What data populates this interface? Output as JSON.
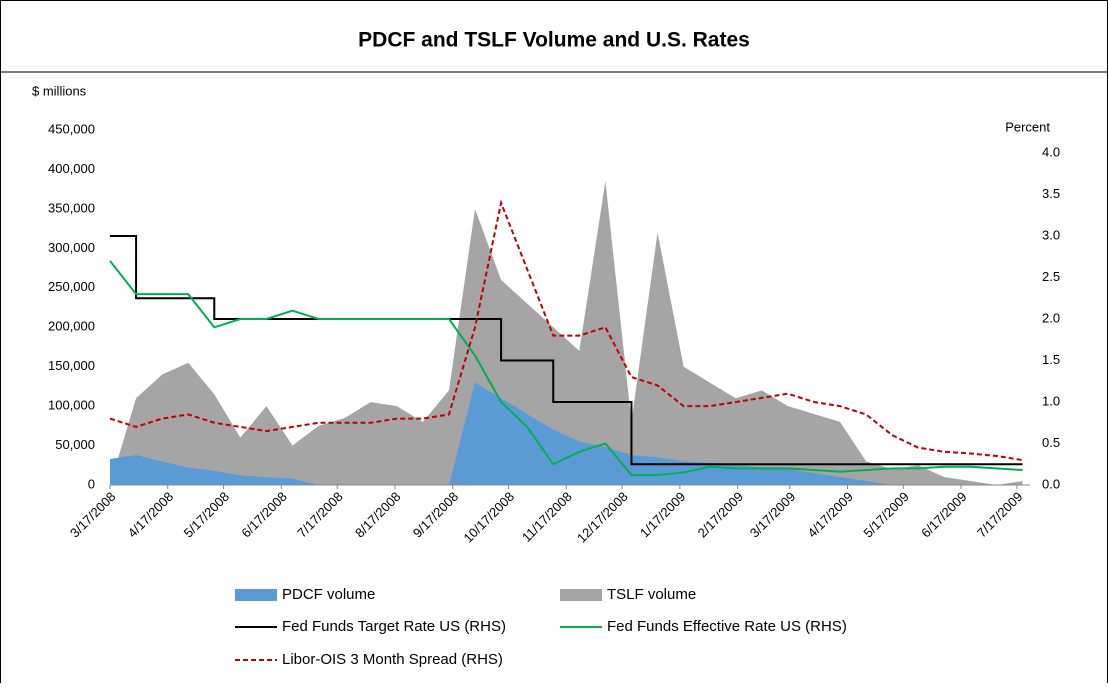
{
  "chart_data": {
    "type": "line",
    "title": "PDCF and TSLF Volume and U.S. Rates",
    "y_label": "$ millions",
    "y2_label": "Percent",
    "x": [
      "3/17/2008",
      "3/31/2008",
      "4/14/2008",
      "4/28/2008",
      "5/12/2008",
      "5/26/2008",
      "6/9/2008",
      "6/23/2008",
      "7/7/2008",
      "7/21/2008",
      "8/4/2008",
      "8/18/2008",
      "9/1/2008",
      "9/15/2008",
      "9/29/2008",
      "10/13/2008",
      "10/27/2008",
      "11/10/2008",
      "11/24/2008",
      "12/8/2008",
      "12/22/2008",
      "1/5/2009",
      "1/19/2009",
      "2/2/2009",
      "2/16/2009",
      "3/2/2009",
      "3/16/2009",
      "3/30/2009",
      "4/13/2009",
      "4/27/2009",
      "5/11/2009",
      "5/25/2009",
      "6/8/2009",
      "6/22/2009",
      "7/6/2009",
      "7/20/2009"
    ],
    "xlim": [
      "3/17/2008",
      "7/24/2009"
    ],
    "xticks": [
      "3/17/2008",
      "4/17/2008",
      "5/17/2008",
      "6/17/2008",
      "7/17/2008",
      "8/17/2008",
      "9/17/2008",
      "10/17/2008",
      "11/17/2008",
      "12/17/2008",
      "1/17/2009",
      "2/17/2009",
      "3/17/2009",
      "4/17/2009",
      "5/17/2009",
      "6/17/2009",
      "7/17/2009"
    ],
    "ylim": [
      0,
      450000
    ],
    "yticks": [
      0,
      {
        "value": 50000,
        "label": "50,000"
      },
      {
        "value": 100000,
        "label": "100,000"
      },
      {
        "value": 150000,
        "label": "150,000"
      },
      {
        "value": 200000,
        "label": "200,000"
      },
      {
        "value": 250000,
        "label": "250,000"
      },
      {
        "value": 300000,
        "label": "300,000"
      },
      {
        "value": 350000,
        "label": "350,000"
      },
      {
        "value": 400000,
        "label": "400,000"
      },
      {
        "value": 450000,
        "label": "450,000"
      }
    ],
    "y2lim": [
      0,
      4
    ],
    "y2ticks": [
      {
        "value": 0,
        "label": "0.0"
      },
      0.5,
      {
        "value": 1,
        "label": "1.0"
      },
      1.5,
      {
        "value": 2,
        "label": "2.0"
      },
      2.5,
      {
        "value": 3,
        "label": "3.0"
      },
      3.5,
      {
        "value": 4,
        "label": "4.0"
      }
    ],
    "grid": false,
    "series": [
      {
        "name": "TSLF volume",
        "kind": "area",
        "color": "#a5a5a5",
        "values": [
          0,
          110000,
          140000,
          155000,
          115000,
          60000,
          100000,
          50000,
          75000,
          85000,
          105000,
          100000,
          80000,
          120000,
          350000,
          260000,
          230000,
          200000,
          170000,
          385000,
          80000,
          320000,
          150000,
          130000,
          110000,
          120000,
          100000,
          90000,
          80000,
          30000,
          20000,
          25000,
          10000,
          5000,
          0,
          5000
        ]
      },
      {
        "name": "PDCF volume",
        "kind": "area",
        "color": "#5b9bd5",
        "values": [
          33000,
          38000,
          30000,
          22000,
          18000,
          12000,
          10000,
          8000,
          0,
          0,
          0,
          0,
          0,
          0,
          130000,
          110000,
          90000,
          70000,
          55000,
          48000,
          38000,
          35000,
          30000,
          28000,
          25000,
          22000,
          20000,
          15000,
          10000,
          5000,
          0,
          0,
          0,
          0,
          0,
          0
        ]
      },
      {
        "name": "Fed Funds Target Rate US (RHS)",
        "kind": "line",
        "axis": "y2",
        "drawstyle": "steps-post",
        "color": "#000000",
        "values": [
          3.0,
          2.25,
          2.25,
          2.25,
          2.0,
          2.0,
          2.0,
          2.0,
          2.0,
          2.0,
          2.0,
          2.0,
          2.0,
          2.0,
          2.0,
          1.5,
          1.5,
          1.0,
          1.0,
          1.0,
          0.25,
          0.25,
          0.25,
          0.25,
          0.25,
          0.25,
          0.25,
          0.25,
          0.25,
          0.25,
          0.25,
          0.25,
          0.25,
          0.25,
          0.25,
          0.25
        ]
      },
      {
        "name": "Fed Funds Effective Rate US (RHS)",
        "kind": "line",
        "axis": "y2",
        "color": "#00b050",
        "values": [
          2.7,
          2.3,
          2.3,
          2.3,
          1.9,
          2.0,
          2.0,
          2.1,
          2.0,
          2.0,
          2.0,
          2.0,
          2.0,
          2.0,
          1.56,
          1.0,
          0.7,
          0.25,
          0.4,
          0.5,
          0.12,
          0.12,
          0.15,
          0.22,
          0.2,
          0.2,
          0.2,
          0.18,
          0.16,
          0.18,
          0.2,
          0.2,
          0.22,
          0.22,
          0.2,
          0.18
        ]
      },
      {
        "name": "Libor-OIS 3 Month Spread (RHS)",
        "kind": "line",
        "axis": "y2",
        "linestyle": "dashed",
        "color": "#c00000",
        "values": [
          0.8,
          0.7,
          0.8,
          0.85,
          0.75,
          0.7,
          0.65,
          0.7,
          0.75,
          0.75,
          0.75,
          0.8,
          0.8,
          0.85,
          1.9,
          3.4,
          2.6,
          1.8,
          1.8,
          1.9,
          1.3,
          1.2,
          0.95,
          0.95,
          1.0,
          1.05,
          1.1,
          1.0,
          0.95,
          0.85,
          0.6,
          0.45,
          0.4,
          0.38,
          0.35,
          0.3
        ]
      }
    ],
    "legend_order": [
      1,
      0,
      2,
      3,
      4
    ]
  }
}
